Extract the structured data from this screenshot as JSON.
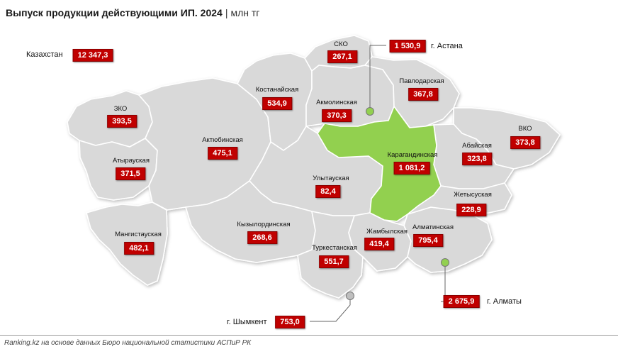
{
  "title": {
    "main": "Выпуск продукции действующими ИП. 2024",
    "separator": "|",
    "unit": "млн тг"
  },
  "total": {
    "label": "Казахстан",
    "value": "12 347,3"
  },
  "regions": {
    "sko": {
      "name": "СКО",
      "value": "267,1"
    },
    "kostanay": {
      "name": "Костанайская",
      "value": "534,9"
    },
    "akmola": {
      "name": "Акмолинская",
      "value": "370,3"
    },
    "pavlodar": {
      "name": "Павлодарская",
      "value": "367,8"
    },
    "zko": {
      "name": "ЗКО",
      "value": "393,5"
    },
    "aktobe": {
      "name": "Актюбинская",
      "value": "475,1"
    },
    "vko": {
      "name": "ВКО",
      "value": "373,8"
    },
    "abay": {
      "name": "Абайская",
      "value": "323,8"
    },
    "atyrau": {
      "name": "Атырауская",
      "value": "371,5"
    },
    "karaganda": {
      "name": "Карагандинская",
      "value": "1 081,2"
    },
    "ulytau": {
      "name": "Улытауская",
      "value": "82,4"
    },
    "zhetysu": {
      "name": "Жетысуская",
      "value": "228,9"
    },
    "mangystau": {
      "name": "Мангистауская",
      "value": "482,1"
    },
    "kyzylorda": {
      "name": "Кызылординская",
      "value": "268,6"
    },
    "zhambyl": {
      "name": "Жамбылская",
      "value": "419,4"
    },
    "almaty_region": {
      "name": "Алматинская",
      "value": "795,4"
    },
    "turkestan": {
      "name": "Туркестанская",
      "value": "551,7"
    }
  },
  "cities": {
    "astana": {
      "name": "г. Астана",
      "value": "1 530,9"
    },
    "almaty": {
      "name": "г. Алматы",
      "value": "2 675,9"
    },
    "shymkent": {
      "name": "г. Шымкент",
      "value": "753,0"
    }
  },
  "colors": {
    "region_fill": "#d9d9d9",
    "region_border": "#ffffff",
    "highlight_fill": "#92d050",
    "value_box": "#c00000",
    "city_marker": "#92d050"
  },
  "footer": "Ranking.kz на основе данных Бюро национальной статистики АСПиР РК"
}
